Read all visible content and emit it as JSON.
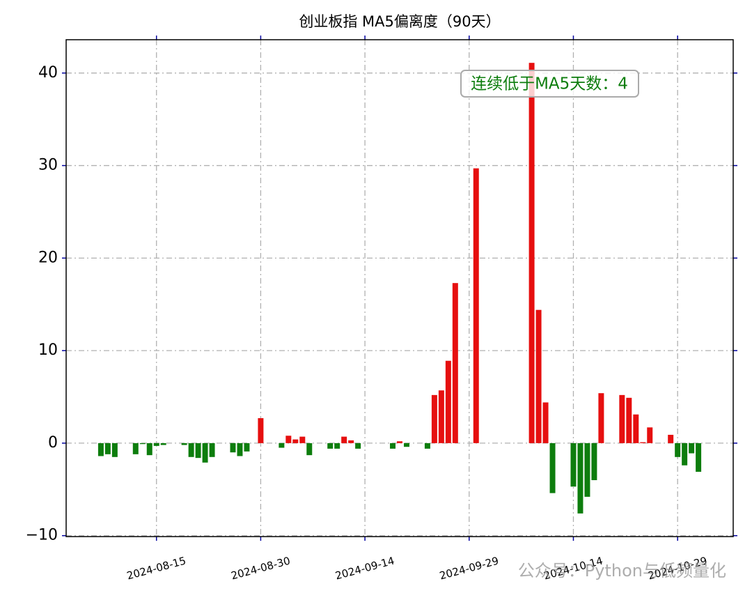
{
  "chart_data": {
    "type": "bar",
    "title": "创业板指 MA5偏离度（90天）",
    "annotation": "连续低于MA5天数：4",
    "watermark": "公众号：Python与低频量化",
    "x": [
      "2024-08-07",
      "2024-08-08",
      "2024-08-09",
      "2024-08-12",
      "2024-08-13",
      "2024-08-14",
      "2024-08-15",
      "2024-08-16",
      "2024-08-19",
      "2024-08-20",
      "2024-08-21",
      "2024-08-22",
      "2024-08-23",
      "2024-08-26",
      "2024-08-27",
      "2024-08-28",
      "2024-08-30",
      "2024-09-02",
      "2024-09-03",
      "2024-09-04",
      "2024-09-05",
      "2024-09-06",
      "2024-09-09",
      "2024-09-10",
      "2024-09-11",
      "2024-09-12",
      "2024-09-13",
      "2024-09-18",
      "2024-09-19",
      "2024-09-20",
      "2024-09-23",
      "2024-09-24",
      "2024-09-25",
      "2024-09-26",
      "2024-09-27",
      "2024-09-30",
      "2024-10-08",
      "2024-10-09",
      "2024-10-10",
      "2024-10-11",
      "2024-10-14",
      "2024-10-15",
      "2024-10-16",
      "2024-10-17",
      "2024-10-18",
      "2024-10-21",
      "2024-10-22",
      "2024-10-23",
      "2024-10-24",
      "2024-10-25",
      "2024-10-28",
      "2024-10-29",
      "2024-10-30",
      "2024-10-31",
      "2024-11-01"
    ],
    "values": [
      -1.4,
      -1.2,
      -1.5,
      -1.2,
      -0.1,
      -1.3,
      -0.3,
      -0.2,
      -0.2,
      -1.5,
      -1.6,
      -2.1,
      -1.5,
      -1.0,
      -1.4,
      -0.9,
      2.7,
      -0.5,
      0.8,
      0.4,
      0.7,
      -1.3,
      -0.6,
      -0.6,
      0.7,
      0.3,
      -0.6,
      -0.6,
      0.2,
      -0.4,
      -0.6,
      5.2,
      5.7,
      8.9,
      17.3,
      29.7,
      41.1,
      14.4,
      4.4,
      -5.4,
      -4.7,
      -7.6,
      -5.8,
      -4.0,
      5.4,
      5.2,
      4.9,
      3.1,
      0.1,
      1.7,
      0.9,
      -1.5,
      -2.4,
      -1.1,
      -3.1
    ],
    "positive_color": "#e60f0f",
    "negative_color": "#0d7d0d",
    "xlim": [
      "2024-08-02",
      "2024-11-06"
    ],
    "xticks": [
      "2024-08-15",
      "2024-08-30",
      "2024-09-14",
      "2024-09-29",
      "2024-10-14",
      "2024-10-29"
    ],
    "ylim": [
      -10.1,
      43.6
    ],
    "yticks": [
      {
        "value": -10,
        "label": "−10"
      },
      0,
      10,
      20,
      30,
      40
    ],
    "grid": true
  }
}
